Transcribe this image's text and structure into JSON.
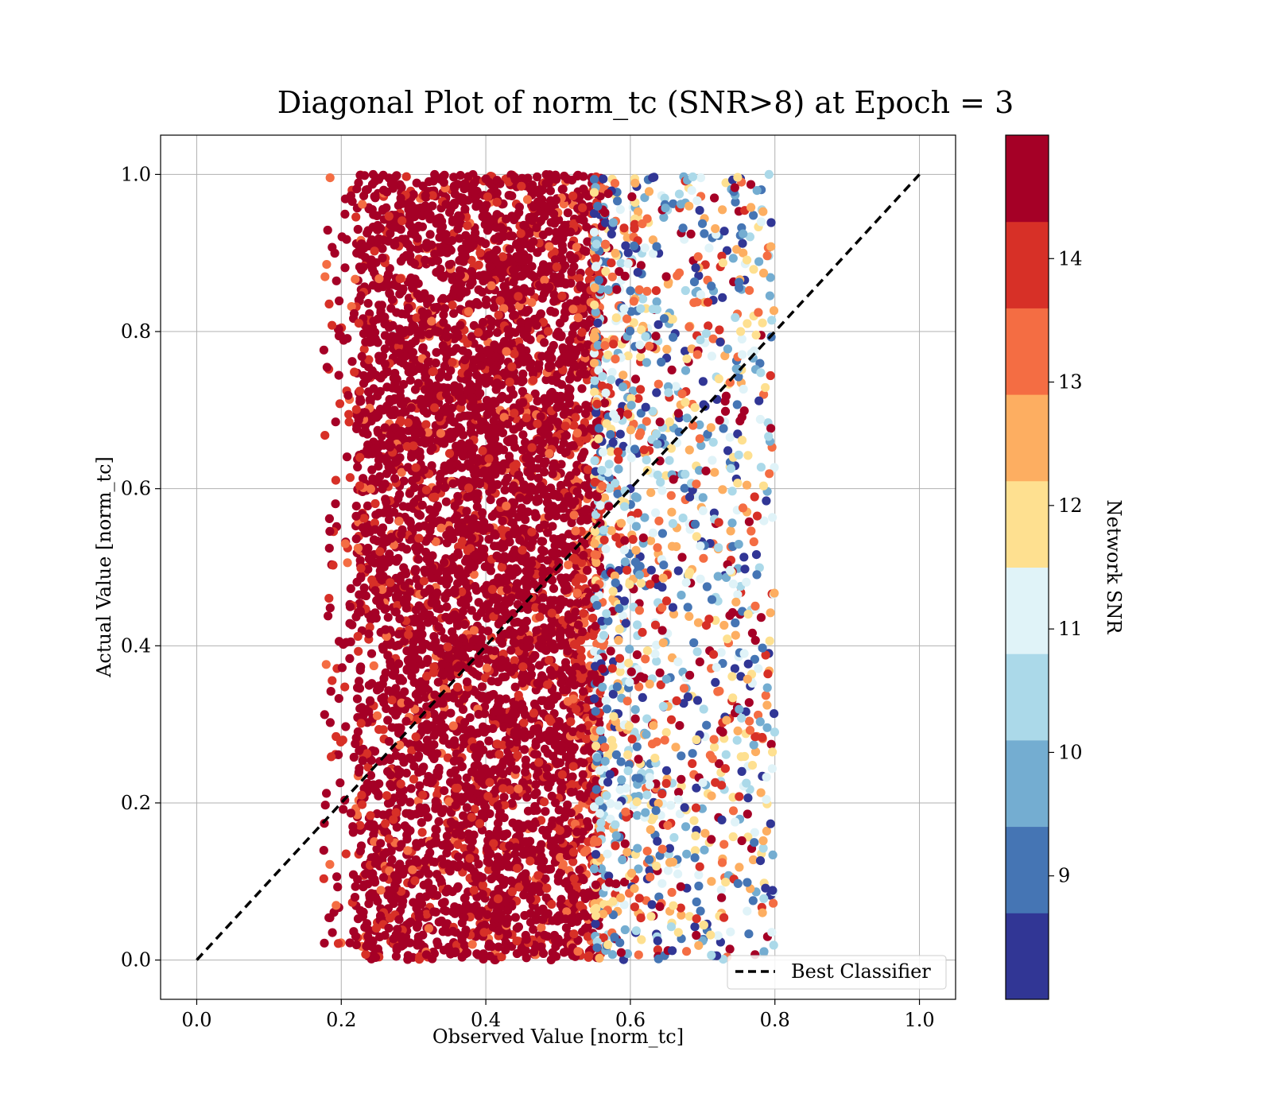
{
  "chart_data": {
    "type": "scatter",
    "title": "Diagonal Plot of norm_tc (SNR>8) at Epoch = 3",
    "xlabel": "Observed Value [norm_tc]",
    "ylabel": "Actual Value [norm_tc]",
    "xlim": [
      -0.05,
      1.05
    ],
    "ylim": [
      -0.05,
      1.05
    ],
    "x_ticks": [
      "0.0",
      "0.2",
      "0.4",
      "0.6",
      "0.8",
      "1.0"
    ],
    "y_ticks": [
      "0.0",
      "0.2",
      "0.4",
      "0.6",
      "0.8",
      "1.0"
    ],
    "grid": true,
    "reference_line": {
      "name": "Best Classifier",
      "x": [
        0.0,
        1.0
      ],
      "y": [
        0.0,
        1.0
      ],
      "style": "dashed",
      "color": "#000000"
    },
    "legend": {
      "placement": "lower-right",
      "entries": [
        "Best Classifier"
      ]
    },
    "colorbar": {
      "label": "Network SNR",
      "range": [
        8.0,
        15.0
      ],
      "bounds": [
        8.0,
        8.7,
        9.4,
        10.1,
        10.8,
        11.5,
        12.2,
        12.9,
        13.6,
        14.3,
        15.0
      ],
      "tick_values": [
        9,
        10,
        11,
        12,
        13,
        14
      ],
      "tick_labels": [
        "9",
        "10",
        "11",
        "12",
        "13",
        "14"
      ],
      "colors": [
        "#313695",
        "#4575b4",
        "#74add1",
        "#abd9e9",
        "#e0f3f8",
        "#fee090",
        "#fdae61",
        "#f46d43",
        "#d73027",
        "#a50026"
      ]
    },
    "series": [
      {
        "distribution": "dense",
        "x_range": [
          0.22,
          0.56
        ],
        "y_range": [
          0.0,
          1.0
        ],
        "snr_range": [
          13.0,
          15.0
        ]
      },
      {
        "distribution": "sparse",
        "x_range": [
          0.55,
          0.8
        ],
        "y_range": [
          0.0,
          1.0
        ],
        "snr_range": [
          8.0,
          15.0
        ]
      }
    ]
  }
}
